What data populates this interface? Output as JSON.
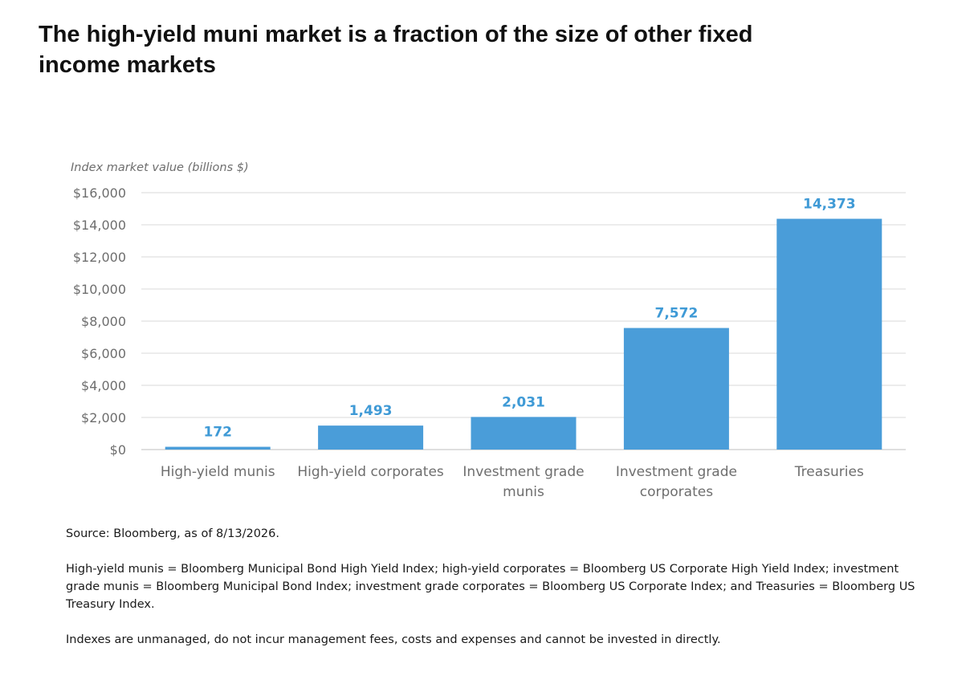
{
  "title": "The high-yield muni market is a fraction of the size of other fixed income markets",
  "chart_data": {
    "type": "bar",
    "title": "The high-yield muni market is a fraction of the size of other fixed income markets",
    "ylabel": "Index market value (billions $)",
    "xlabel": "",
    "categories": [
      [
        "High-yield munis"
      ],
      [
        "High-yield corporates"
      ],
      [
        "Investment grade",
        "munis"
      ],
      [
        "Investment grade",
        "corporates"
      ],
      [
        "Treasuries"
      ]
    ],
    "values": [
      172,
      1493,
      2031,
      7572,
      14373
    ],
    "value_labels": [
      "172",
      "1,493",
      "2,031",
      "7,572",
      "14,373"
    ],
    "ylim": [
      0,
      16000
    ],
    "y_ticks": [
      0,
      2000,
      4000,
      6000,
      8000,
      10000,
      12000,
      14000,
      16000
    ],
    "y_tick_labels": [
      "$0",
      "$2,000",
      "$4,000",
      "$6,000",
      "$8,000",
      "$10,000",
      "$12,000",
      "$14,000",
      "$16,000"
    ],
    "grid": true,
    "bar_color": "#4a9dd9",
    "label_color": "#3f9ad6"
  },
  "notes": {
    "source": "Source: Bloomberg, as of 8/13/2026.",
    "definitions": "High-yield munis = Bloomberg Municipal Bond High Yield Index; high-yield corporates = Bloomberg US Corporate High Yield Index; investment grade munis = Bloomberg Municipal Bond Index; investment grade corporates = Bloomberg US Corporate Index; and Treasuries = Bloomberg US Treasury Index.",
    "disclaimer": "Indexes are unmanaged, do not incur management fees, costs and expenses and cannot be invested in directly."
  }
}
